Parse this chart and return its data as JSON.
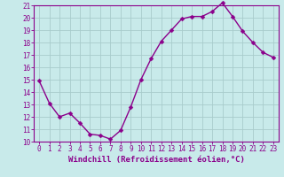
{
  "x": [
    0,
    1,
    2,
    3,
    4,
    5,
    6,
    7,
    8,
    9,
    10,
    11,
    12,
    13,
    14,
    15,
    16,
    17,
    18,
    19,
    20,
    21,
    22,
    23
  ],
  "y": [
    14.9,
    13.1,
    12.0,
    12.3,
    11.5,
    10.6,
    10.5,
    10.2,
    10.9,
    12.8,
    15.0,
    16.7,
    18.1,
    19.0,
    19.9,
    20.1,
    20.1,
    20.5,
    21.2,
    20.1,
    18.9,
    18.0,
    17.2,
    16.8
  ],
  "line_color": "#8b008b",
  "marker_color": "#8b008b",
  "bg_color": "#c8eaea",
  "grid_color": "#a8cccc",
  "xlabel": "Windchill (Refroidissement éolien,°C)",
  "xlim": [
    -0.5,
    23.5
  ],
  "ylim": [
    10,
    21
  ],
  "yticks": [
    10,
    11,
    12,
    13,
    14,
    15,
    16,
    17,
    18,
    19,
    20,
    21
  ],
  "xticks": [
    0,
    1,
    2,
    3,
    4,
    5,
    6,
    7,
    8,
    9,
    10,
    11,
    12,
    13,
    14,
    15,
    16,
    17,
    18,
    19,
    20,
    21,
    22,
    23
  ],
  "axis_color": "#8b008b",
  "tick_color": "#8b008b",
  "tick_fontsize": 5.5,
  "xlabel_fontsize": 6.5,
  "marker_size": 2.5,
  "line_width": 1.0
}
